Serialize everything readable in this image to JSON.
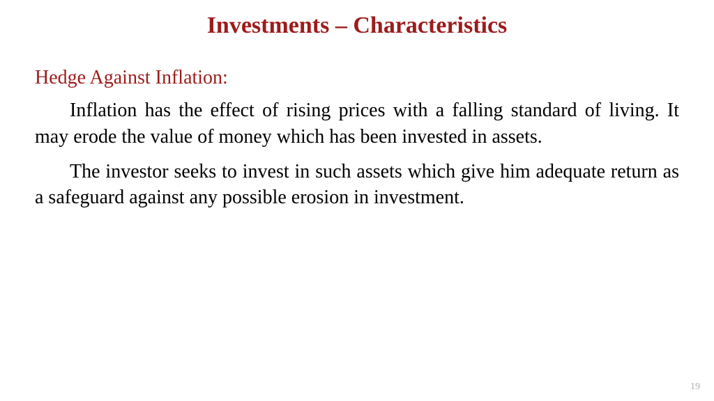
{
  "slide": {
    "title": "Investments – Characteristics",
    "title_color": "#9c1c1c",
    "title_fontsize": 34,
    "subheading": "Hedge Against Inflation:",
    "subheading_color": "#9c1c1c",
    "subheading_fontsize": 28,
    "paragraph1": "Inflation has the effect of rising prices with a falling standard of living. It may erode the value of money which has been invested in assets.",
    "paragraph2": "The investor seeks to invest in such assets which give him adequate return as a safeguard against any possible erosion in investment.",
    "body_color": "#000000",
    "body_fontsize": 28,
    "background_color": "#ffffff",
    "page_number": "19",
    "page_number_color": "#b0b0b0",
    "page_number_fontsize": 14
  }
}
